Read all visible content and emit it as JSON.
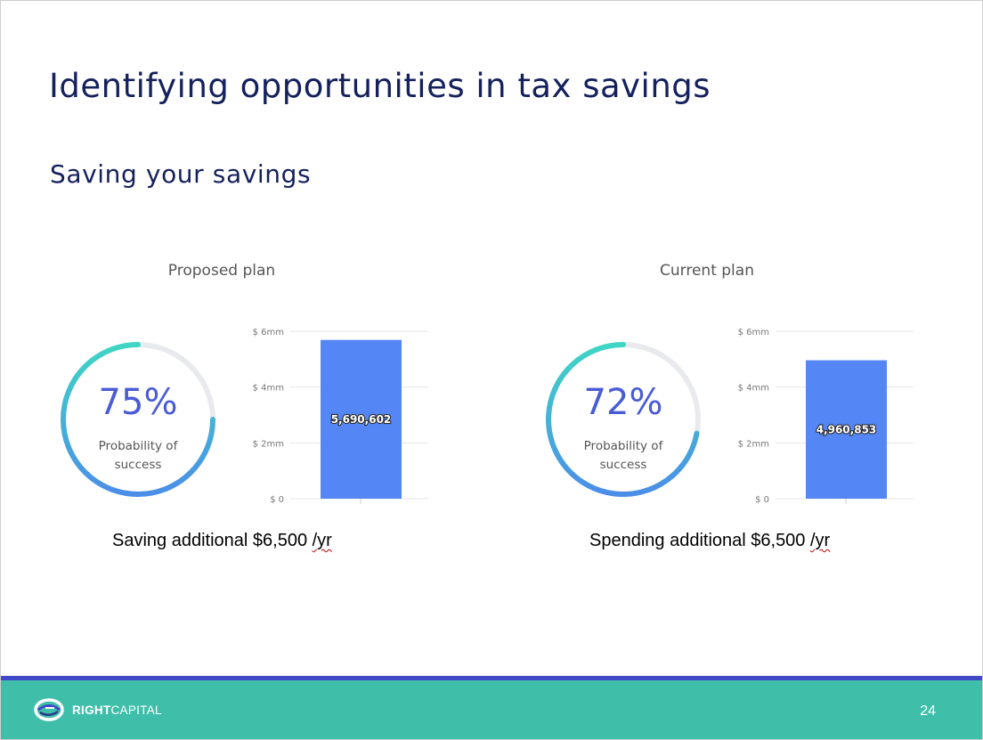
{
  "slide": {
    "title": "Identifying opportunities in tax savings",
    "subtitle": "Saving your savings",
    "page_number": "24"
  },
  "brand": {
    "logo_icon": "rightcapital-swirl-icon",
    "logo_bold": "RIGHT",
    "logo_light": "CAPITAL",
    "footer_color": "#3fbfaa",
    "footer_line_color": "#3f49c8",
    "title_color": "#15215c",
    "bar_color": "#5487f5"
  },
  "plans": [
    {
      "title": "Proposed plan",
      "probability": 75,
      "probability_label": "75%",
      "probability_caption_1": "Probability of",
      "probability_caption_2": "success",
      "caption_main": "Saving additional $6,500 ",
      "caption_unit": "/yr"
    },
    {
      "title": "Current plan",
      "probability": 72,
      "probability_label": "72%",
      "probability_caption_1": "Probability of",
      "probability_caption_2": "success",
      "caption_main": "Spending additional $6,500 ",
      "caption_unit": "/yr"
    }
  ],
  "chart_data": [
    {
      "type": "bar",
      "title": "Proposed plan",
      "values": [
        5690602
      ],
      "data_labels": [
        "5,690,602"
      ],
      "ylim": [
        0,
        6000000
      ],
      "yticks": [
        0,
        2000000,
        4000000,
        6000000
      ],
      "ytick_labels": [
        "$ 0",
        "$ 2mm",
        "$ 4mm",
        "$ 6mm"
      ],
      "grid": true
    },
    {
      "type": "bar",
      "title": "Current plan",
      "values": [
        4960853
      ],
      "data_labels": [
        "4,960,853"
      ],
      "ylim": [
        0,
        6000000
      ],
      "yticks": [
        0,
        2000000,
        4000000,
        6000000
      ],
      "ytick_labels": [
        "$ 0",
        "$ 2mm",
        "$ 4mm",
        "$ 6mm"
      ],
      "grid": true
    }
  ]
}
